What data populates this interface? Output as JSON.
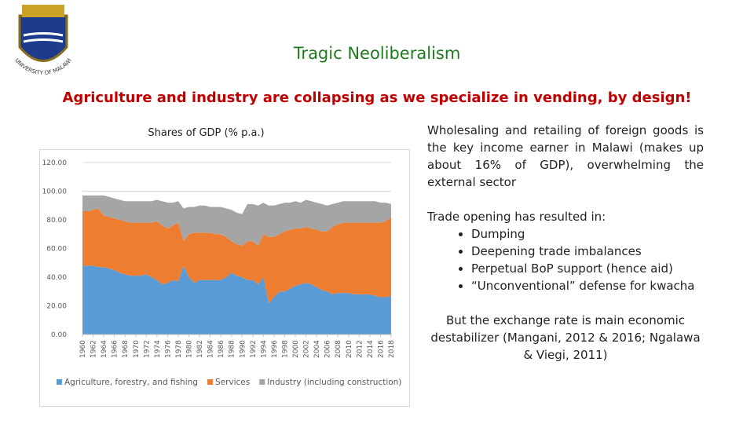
{
  "logo": {
    "text": "UNIVERSITY OF MALAWI"
  },
  "header": {
    "title": "Tragic Neoliberalism",
    "subtitle": "Agriculture and industry are collapsing as we specialize in vending, by design!"
  },
  "text": {
    "paragraph1": "Wholesaling and retailing of foreign goods is the key income earner in Malawi (makes up about 16% of GDP), overwhelming the external sector",
    "list_intro": "Trade opening has resulted in:",
    "bullets": [
      "Dumping",
      "Deepening trade imbalances",
      "Perpetual BoP support (hence aid)",
      "“Unconventional” defense for kwacha"
    ],
    "paragraph2": "But the exchange rate is main economic destabilizer (Mangani, 2012 & 2016; Ngalawa & Viegi, 2011)"
  },
  "chart_data": {
    "type": "stacked-area",
    "title": "Shares of GDP (% p.a.)",
    "x": [
      1960,
      1961,
      1962,
      1963,
      1964,
      1965,
      1966,
      1967,
      1968,
      1969,
      1970,
      1971,
      1972,
      1973,
      1974,
      1975,
      1976,
      1977,
      1978,
      1979,
      1980,
      1981,
      1982,
      1983,
      1984,
      1985,
      1986,
      1987,
      1988,
      1989,
      1990,
      1991,
      1992,
      1993,
      1994,
      1995,
      1996,
      1997,
      1998,
      1999,
      2000,
      2001,
      2002,
      2003,
      2004,
      2005,
      2006,
      2007,
      2008,
      2009,
      2010,
      2011,
      2012,
      2013,
      2014,
      2015,
      2016,
      2017,
      2018
    ],
    "xlim": [
      1960,
      2018
    ],
    "xticks": [
      1960,
      1962,
      1964,
      1966,
      1968,
      1970,
      1972,
      1974,
      1976,
      1978,
      1980,
      1982,
      1984,
      1986,
      1988,
      1990,
      1992,
      1994,
      1996,
      1998,
      2000,
      2002,
      2004,
      2006,
      2008,
      2010,
      2012,
      2014,
      2016,
      2018
    ],
    "ylim": [
      0,
      120
    ],
    "yticks": [
      {
        "value": 0,
        "label": "0.00"
      },
      {
        "value": 20,
        "label": "20.00"
      },
      {
        "value": 40,
        "label": "40.00"
      },
      {
        "value": 60,
        "label": "60.00"
      },
      {
        "value": 80,
        "label": "80.00"
      },
      {
        "value": 100,
        "label": "100.00"
      },
      {
        "value": 120,
        "label": "120.00"
      }
    ],
    "grid": true,
    "legend": "bottom",
    "series": [
      {
        "name": "Agriculture, forestry, and fishing",
        "color": "#5b9bd5",
        "values": [
          48,
          48,
          48,
          47,
          47,
          46,
          45,
          43,
          42,
          41,
          41,
          41,
          42,
          40,
          38,
          35,
          36,
          38,
          37,
          48,
          40,
          36,
          38,
          38,
          38,
          38,
          38,
          40,
          43,
          41,
          40,
          38,
          38,
          35,
          40,
          22,
          26,
          30,
          30,
          32,
          34,
          35,
          36,
          35,
          33,
          31,
          30,
          28,
          29,
          29,
          29,
          28,
          28,
          28,
          28,
          27,
          26,
          26,
          27
        ]
      },
      {
        "name": "Services",
        "color": "#ed7d31",
        "values": [
          38,
          38,
          39,
          41,
          36,
          36,
          36,
          37,
          37,
          37,
          37,
          37,
          36,
          38,
          41,
          41,
          38,
          38,
          41,
          17,
          30,
          35,
          33,
          33,
          33,
          32,
          32,
          28,
          22,
          22,
          22,
          27,
          27,
          27,
          30,
          46,
          42,
          40,
          42,
          41,
          40,
          39,
          39,
          39,
          40,
          41,
          42,
          47,
          48,
          49,
          49,
          50,
          50,
          50,
          50,
          51,
          52,
          53,
          55
        ]
      },
      {
        "name": "Industry (including construction)",
        "color": "#a5a5a5",
        "values": [
          11,
          11,
          10,
          9,
          14,
          14,
          14,
          14,
          14,
          15,
          15,
          15,
          15,
          15,
          15,
          17,
          18,
          16,
          15,
          23,
          19,
          18,
          19,
          19,
          18,
          19,
          19,
          20,
          22,
          22,
          22,
          26,
          26,
          28,
          22,
          22,
          22,
          21,
          20,
          19,
          19,
          18,
          19,
          19,
          19,
          19,
          18,
          16,
          15,
          15,
          15,
          15,
          15,
          15,
          15,
          15,
          14,
          13,
          9
        ]
      }
    ]
  }
}
